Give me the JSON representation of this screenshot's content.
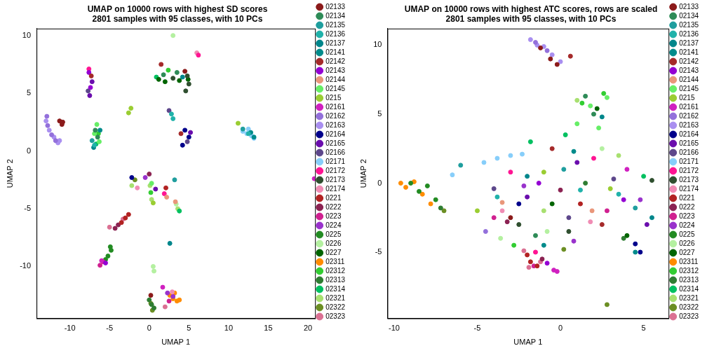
{
  "chart_data": [
    {
      "type": "scatter",
      "title": [
        "UMAP on 10000 rows with highest SD scores",
        "2801 samples with 95 classes, with 10 PCs"
      ],
      "x_label": "UMAP 1",
      "y_label": "UMAP 2",
      "xlim": [
        -14.2,
        20.9
      ],
      "ylim": [
        -14.5,
        10.6
      ],
      "xticks": [
        -10,
        -5,
        0,
        5,
        10,
        15,
        20
      ],
      "yticks": [
        -10,
        -5,
        0,
        5,
        10
      ],
      "grid": false,
      "legend": "right",
      "marker": "circle",
      "series": [
        {
          "name": "02133",
          "color": "#8b1a1a",
          "x": [
            -11.3,
            -11.0,
            -10.9,
            0.2,
            4.5
          ],
          "y": [
            2.6,
            2.3,
            2.5,
            -12.5,
            6.9
          ]
        },
        {
          "name": "02134",
          "color": "#2e8b57",
          "x": [
            -6.8,
            -6.5,
            1.8,
            3.5
          ],
          "y": [
            1.8,
            1.2,
            6.6,
            6.8
          ]
        },
        {
          "name": "02135",
          "color": "#1f9e9e",
          "x": [
            -7.2,
            11.8,
            3.2
          ],
          "y": [
            0.9,
            1.9,
            -2.5
          ]
        },
        {
          "name": "02136",
          "color": "#20b2aa",
          "x": [
            2.8,
            3.0,
            -6.9,
            12.5
          ],
          "y": [
            3.2,
            2.8,
            0.5,
            1.5
          ]
        },
        {
          "name": "02137",
          "color": "#00868b",
          "x": [
            2.6,
            4.2,
            -7.0
          ],
          "y": [
            -8.0,
            6.4,
            0.3
          ]
        },
        {
          "name": "02141",
          "color": "#008b8b",
          "x": [
            12.8,
            13.2,
            -6.2
          ],
          "y": [
            1.6,
            1.2,
            1.8
          ]
        },
        {
          "name": "02142",
          "color": "#a52a2a",
          "x": [
            1.5,
            4.0,
            -7.3
          ],
          "y": [
            7.5,
            1.5,
            6.5
          ]
        },
        {
          "name": "02143",
          "color": "#9400d3",
          "x": [
            -7.6,
            -7.4,
            -5.5
          ],
          "y": [
            6.8,
            5.5,
            -9.7
          ]
        },
        {
          "name": "02144",
          "color": "#e9967a",
          "x": [
            2.2,
            3.3
          ],
          "y": [
            -4.0,
            -4.4
          ]
        },
        {
          "name": "02145",
          "color": "#66ee66",
          "x": [
            -6.6,
            -6.3,
            -6.9,
            0.3
          ],
          "y": [
            2.3,
            0.8,
            1.5,
            -2.8
          ]
        },
        {
          "name": "0215",
          "color": "#9acd32",
          "x": [
            -2.6,
            -2.3,
            11.2,
            0.5
          ],
          "y": [
            3.3,
            3.7,
            2.4,
            -4.5
          ]
        },
        {
          "name": "02161",
          "color": "#d020c0",
          "x": [
            20.8,
            -6.0,
            1.7
          ],
          "y": [
            -2.4,
            -9.5,
            -11.8
          ]
        },
        {
          "name": "02162",
          "color": "#9370db",
          "x": [
            -12.8,
            -12.3,
            -11.8,
            -12.9
          ],
          "y": [
            2.2,
            1.4,
            0.9,
            3.0
          ]
        },
        {
          "name": "02163",
          "color": "#a98ff0",
          "x": [
            -12.6,
            -12.0,
            -11.5,
            -13.0,
            -11.3
          ],
          "y": [
            1.8,
            1.2,
            0.7,
            2.6,
            0.9
          ]
        },
        {
          "name": "02164",
          "color": "#00008b",
          "x": [
            4.5,
            5.0,
            4.2,
            -2.2
          ],
          "y": [
            1.8,
            1.2,
            0.5,
            -2.3
          ]
        },
        {
          "name": "02165",
          "color": "#6a0dad",
          "x": [
            -7.5,
            -7.2,
            5.2,
            0.8
          ],
          "y": [
            4.8,
            6.0,
            1.6,
            -3.3
          ]
        },
        {
          "name": "02166",
          "color": "#5d478b",
          "x": [
            4.8,
            -7.7,
            2.5
          ],
          "y": [
            0.8,
            5.2,
            3.5
          ]
        },
        {
          "name": "02171",
          "color": "#87cefa",
          "x": [
            11.8,
            12.3,
            12.9,
            13.2,
            12.5
          ],
          "y": [
            1.7,
            1.5,
            1.3,
            1.1,
            1.9
          ]
        },
        {
          "name": "02172",
          "color": "#ff1493",
          "x": [
            6.2,
            -7.6,
            1.9
          ],
          "y": [
            8.3,
            7.1,
            -3.7
          ]
        },
        {
          "name": "02173",
          "color": "#2f4f2f",
          "x": [
            4.8,
            5.0,
            4.6,
            3.0
          ],
          "y": [
            6.5,
            5.8,
            5.2,
            6.3
          ]
        },
        {
          "name": "02174",
          "color": "#f08cb4",
          "x": [
            6.0,
            -1.5,
            2.9
          ],
          "y": [
            8.5,
            -3.2,
            -12.2
          ]
        },
        {
          "name": "0221",
          "color": "#b22222",
          "x": [
            -3.0,
            -2.6,
            -3.5,
            2.1
          ],
          "y": [
            -5.8,
            -5.5,
            -6.2,
            -3.2
          ]
        },
        {
          "name": "0222",
          "color": "#8b2252",
          "x": [
            -3.9,
            -4.3,
            0.0
          ],
          "y": [
            -6.4,
            -6.7,
            -2.0
          ]
        },
        {
          "name": "0223",
          "color": "#d02090",
          "x": [
            -5.8,
            -6.2,
            2.5
          ],
          "y": [
            -9.6,
            -9.9,
            -13.0
          ]
        },
        {
          "name": "0224",
          "color": "#9932cc",
          "x": [
            2.3,
            3.0,
            -0.5
          ],
          "y": [
            -12.3,
            -12.6,
            -2.3
          ]
        },
        {
          "name": "0225",
          "color": "#228b22",
          "x": [
            -4.8,
            -5.2,
            -4.9,
            -5.5
          ],
          "y": [
            -8.6,
            -9.1,
            -8.3,
            -9.4
          ]
        },
        {
          "name": "0226",
          "color": "#b4f0a0",
          "x": [
            0.5,
            0.6,
            3.4,
            3.0
          ],
          "y": [
            -10.0,
            -10.4,
            -4.6,
            10.0
          ]
        },
        {
          "name": "0227",
          "color": "#006400",
          "x": [
            1.2,
            2.0,
            3.8,
            4.9
          ],
          "y": [
            6.2,
            6.0,
            6.1,
            6.2
          ]
        },
        {
          "name": "02311",
          "color": "#ff8c00",
          "x": [
            3.0,
            3.5,
            2.6,
            3.2,
            3.8
          ],
          "y": [
            -12.8,
            -13.0,
            -12.5,
            -12.3,
            -12.9
          ]
        },
        {
          "name": "02312",
          "color": "#32cd32",
          "x": [
            -6.4,
            2.4,
            0.2
          ],
          "y": [
            1.5,
            7.0,
            -3.6
          ]
        },
        {
          "name": "02313",
          "color": "#2e7d32",
          "x": [
            0.3,
            0.6,
            0.0
          ],
          "y": [
            -13.3,
            -13.6,
            -12.9
          ]
        },
        {
          "name": "02314",
          "color": "#00c060",
          "x": [
            -6.7,
            0.9,
            3.8
          ],
          "y": [
            0.6,
            6.4,
            -5.2
          ]
        },
        {
          "name": "02321",
          "color": "#a8e070",
          "x": [
            0.1,
            0.3,
            3.6,
            -2.2
          ],
          "y": [
            -3.0,
            -4.2,
            -5.0,
            -3.0
          ]
        },
        {
          "name": "02322",
          "color": "#6b8e23",
          "x": [
            0.4,
            0.2,
            -1.8
          ],
          "y": [
            -13.8,
            -13.2,
            -2.5
          ]
        },
        {
          "name": "02323",
          "color": "#db7093",
          "x": [
            -5.0,
            -3.3,
            2.0
          ],
          "y": [
            -6.6,
            -5.9,
            -13.5
          ]
        }
      ]
    },
    {
      "type": "scatter",
      "title": [
        "UMAP on 10000 rows with highest ATC scores, rows are scaled",
        "2801 samples with 95 classes, with 10 PCs"
      ],
      "x_label": "UMAP 1",
      "y_label": "UMAP 2",
      "xlim": [
        -10.4,
        6.5
      ],
      "ylim": [
        -9.8,
        11.2
      ],
      "xticks": [
        -10,
        -5,
        0,
        5
      ],
      "yticks": [
        -5,
        0,
        5,
        10
      ],
      "grid": false,
      "legend": "right",
      "marker": "circle",
      "series": [
        {
          "name": "02133",
          "color": "#8b1a1a",
          "x": [
            -0.6,
            -0.2,
            -1.2,
            -3.0
          ],
          "y": [
            9.0,
            8.6,
            9.8,
            -2.5
          ]
        },
        {
          "name": "02134",
          "color": "#2e8b57",
          "x": [
            1.5,
            2.0,
            -1.5
          ],
          "y": [
            6.3,
            5.0,
            -3.8
          ]
        },
        {
          "name": "02135",
          "color": "#1f9e9e",
          "x": [
            0.2,
            4.5,
            -6.0
          ],
          "y": [
            1.0,
            -1.8,
            1.3
          ]
        },
        {
          "name": "02136",
          "color": "#20b2aa",
          "x": [
            1.2,
            3.5,
            -3.8
          ],
          "y": [
            -0.5,
            -0.8,
            -1.0
          ]
        },
        {
          "name": "02137",
          "color": "#00868b",
          "x": [
            2.5,
            5.5,
            -2.0
          ],
          "y": [
            4.8,
            -2.5,
            0.5
          ]
        },
        {
          "name": "02141",
          "color": "#008b8b",
          "x": [
            4.5,
            0.8,
            -1.0
          ],
          "y": [
            -5.0,
            2.3,
            -4.5
          ]
        },
        {
          "name": "02142",
          "color": "#a52a2a",
          "x": [
            -0.5,
            2.5,
            0.6
          ],
          "y": [
            2.5,
            -3.0,
            9.2
          ]
        },
        {
          "name": "02143",
          "color": "#9400d3",
          "x": [
            -1.3,
            3.8,
            -0.8
          ],
          "y": [
            0.0,
            -1.2,
            -5.8
          ]
        },
        {
          "name": "02144",
          "color": "#e9967a",
          "x": [
            -3.5,
            1.9
          ],
          "y": [
            -1.4,
            -2.0
          ]
        },
        {
          "name": "02145",
          "color": "#66ee66",
          "x": [
            1.8,
            2.8,
            1.0,
            2.3
          ],
          "y": [
            5.6,
            6.2,
            4.3,
            4.0
          ]
        },
        {
          "name": "0215",
          "color": "#9acd32",
          "x": [
            -1.0,
            3.0,
            -5.0
          ],
          "y": [
            0.8,
            -0.4,
            -2.0
          ]
        },
        {
          "name": "02161",
          "color": "#d020c0",
          "x": [
            -0.2,
            -0.4,
            4.0
          ],
          "y": [
            -6.4,
            -6.3,
            1.0
          ]
        },
        {
          "name": "02162",
          "color": "#9370db",
          "x": [
            -1.5,
            -0.8,
            -4.5
          ],
          "y": [
            10.2,
            9.6,
            -3.5
          ]
        },
        {
          "name": "02163",
          "color": "#a98ff0",
          "x": [
            -1.8,
            -1.0,
            -0.5,
            -1.4,
            0.0
          ],
          "y": [
            10.4,
            9.9,
            9.3,
            10.0,
            8.8
          ]
        },
        {
          "name": "02164",
          "color": "#00008b",
          "x": [
            4.5,
            4.8,
            -2.5
          ],
          "y": [
            -4.4,
            -5.0,
            -1.5
          ]
        },
        {
          "name": "02165",
          "color": "#6a0dad",
          "x": [
            -2.0,
            1.0,
            5.2
          ],
          "y": [
            -1.0,
            1.5,
            -3.0
          ]
        },
        {
          "name": "02166",
          "color": "#5d478b",
          "x": [
            -4.0,
            3.2,
            0.5
          ],
          "y": [
            -0.4,
            0.3,
            -2.5
          ]
        },
        {
          "name": "02171",
          "color": "#87cefa",
          "x": [
            -4.6,
            -3.8,
            -3.0,
            -2.3,
            -6.5
          ],
          "y": [
            1.5,
            1.8,
            2.0,
            2.1,
            0.6
          ]
        },
        {
          "name": "02172",
          "color": "#ff1493",
          "x": [
            -3.0,
            2.0,
            -1.5
          ],
          "y": [
            0.8,
            1.8,
            -5.0
          ]
        },
        {
          "name": "02173",
          "color": "#2f4f2f",
          "x": [
            -2.5,
            0.5,
            5.5
          ],
          "y": [
            -3.0,
            -3.5,
            0.2
          ]
        },
        {
          "name": "02174",
          "color": "#f08cb4",
          "x": [
            -3.5,
            1.8
          ],
          "y": [
            -2.0,
            -2.8
          ]
        },
        {
          "name": "0221",
          "color": "#b22222",
          "x": [
            -1.8,
            -1.4,
            -2.0,
            1.2
          ],
          "y": [
            -5.7,
            -6.0,
            -5.2,
            -1.5
          ]
        },
        {
          "name": "0222",
          "color": "#8b2252",
          "x": [
            -3.2,
            0.0,
            -1.1
          ],
          "y": [
            -2.8,
            -0.5,
            -5.5
          ]
        },
        {
          "name": "0223",
          "color": "#d02090",
          "x": [
            -1.6,
            -4.0,
            2.8
          ],
          "y": [
            -6.0,
            -2.5,
            -2.0
          ]
        },
        {
          "name": "0224",
          "color": "#9932cc",
          "x": [
            -2.2,
            4.8,
            0.8
          ],
          "y": [
            -0.2,
            -1.2,
            -4.2
          ]
        },
        {
          "name": "0225",
          "color": "#228b22",
          "x": [
            -8.5,
            -8.0,
            -7.5,
            -9.0
          ],
          "y": [
            -0.6,
            -0.2,
            -1.2,
            0.0
          ]
        },
        {
          "name": "0226",
          "color": "#b4f0a0",
          "x": [
            -0.8,
            2.5,
            -3.6
          ],
          "y": [
            -3.5,
            2.5,
            -4.0
          ]
        },
        {
          "name": "0227",
          "color": "#006400",
          "x": [
            2.2,
            -0.5,
            4.0
          ],
          "y": [
            5.4,
            -1.5,
            -3.8
          ]
        },
        {
          "name": "02311",
          "color": "#ff8c00",
          "x": [
            -9.3,
            -8.8,
            -8.3,
            -7.8,
            -9.6
          ],
          "y": [
            -0.3,
            0.1,
            -0.8,
            -1.5,
            0.0
          ]
        },
        {
          "name": "02312",
          "color": "#32cd32",
          "x": [
            1.3,
            2.6,
            -2.8
          ],
          "y": [
            5.8,
            6.5,
            -4.5
          ]
        },
        {
          "name": "02313",
          "color": "#2e7d32",
          "x": [
            -7.2,
            1.5,
            3.8
          ],
          "y": [
            -1.8,
            0.0,
            -4.0
          ]
        },
        {
          "name": "02314",
          "color": "#00c060",
          "x": [
            0.3,
            -1.8,
            5.0
          ],
          "y": [
            3.5,
            3.0,
            0.5
          ]
        },
        {
          "name": "02321",
          "color": "#a8e070",
          "x": [
            1.0,
            -1.0,
            3.5
          ],
          "y": [
            6.0,
            -2.0,
            2.0
          ]
        },
        {
          "name": "02322",
          "color": "#6b8e23",
          "x": [
            2.8,
            -7.0,
            0.2
          ],
          "y": [
            -8.8,
            -2.0,
            -4.8
          ]
        },
        {
          "name": "02323",
          "color": "#db7093",
          "x": [
            -1.9,
            -1.2,
            -2.2
          ],
          "y": [
            -6.1,
            -5.7,
            -4.9
          ]
        }
      ]
    }
  ]
}
